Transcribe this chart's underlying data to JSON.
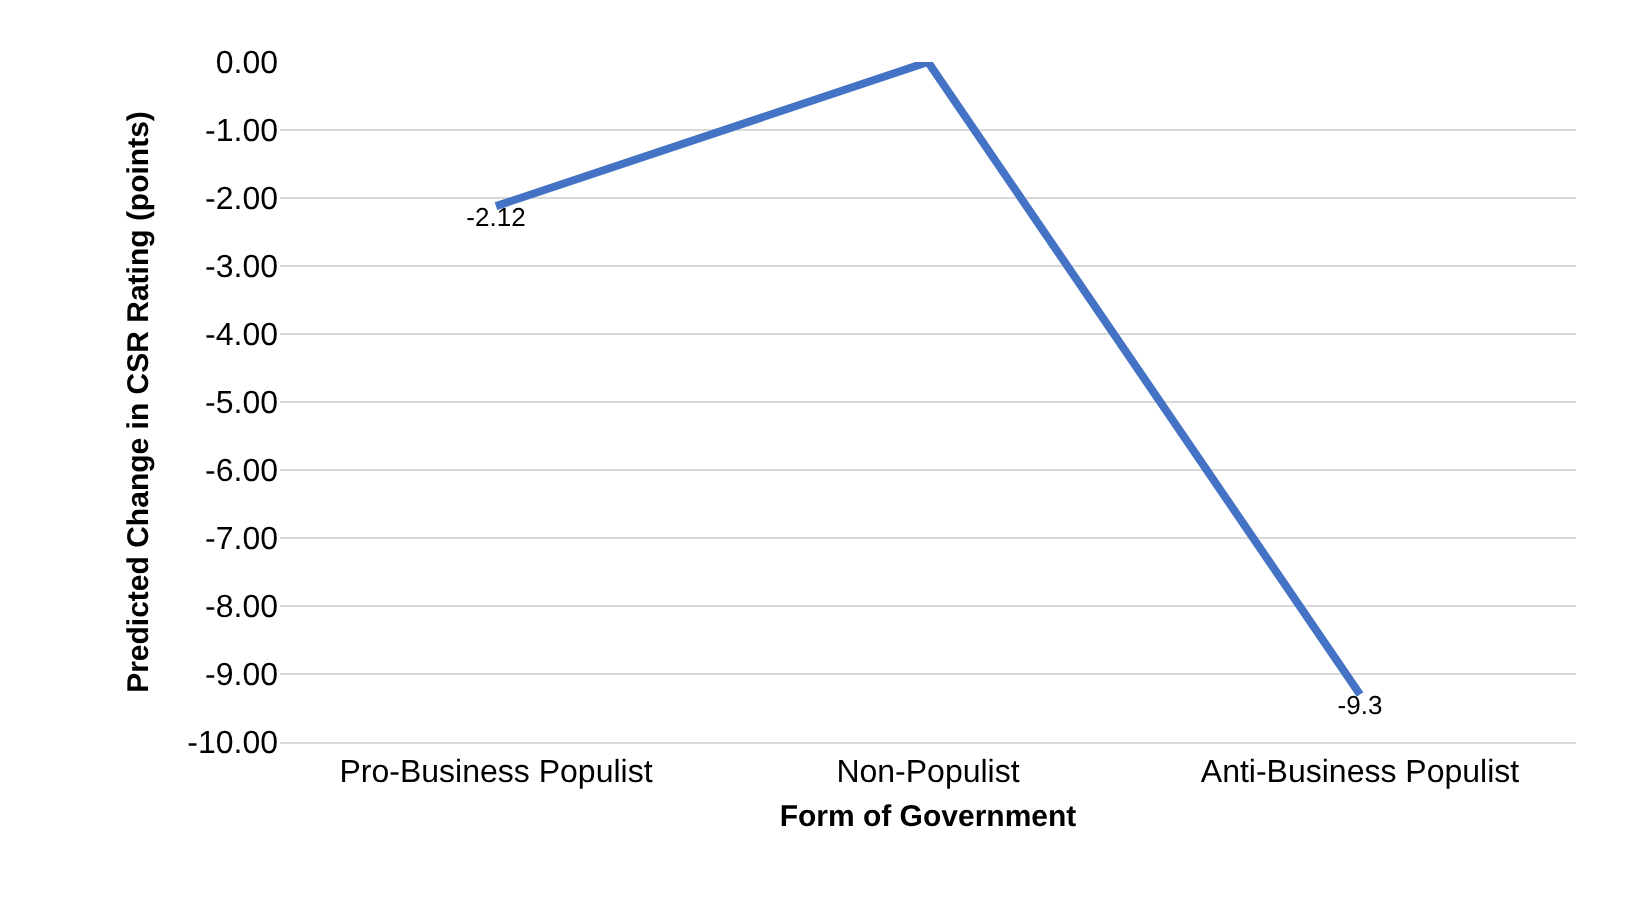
{
  "chart_data": {
    "type": "line",
    "xlabel": "Form of Government",
    "ylabel": "Predicted Change in CSR Rating (points)",
    "categories": [
      "Pro-Business Populist",
      "Non-Populist",
      "Anti-Business Populist"
    ],
    "series": [
      {
        "color": "#4472c4",
        "values": [
          -2.12,
          0,
          -9.3
        ],
        "value_labels": [
          "-2.12",
          null,
          "-9.3"
        ]
      }
    ],
    "ylim": [
      -10,
      0
    ],
    "yticks": [
      {
        "value": 0,
        "label": "0.00"
      },
      {
        "value": -1,
        "label": "-1.00"
      },
      {
        "value": -2,
        "label": "-2.00"
      },
      {
        "value": -3,
        "label": "-3.00"
      },
      {
        "value": -4,
        "label": "-4.00"
      },
      {
        "value": -5,
        "label": "-5.00"
      },
      {
        "value": -6,
        "label": "-6.00"
      },
      {
        "value": -7,
        "label": "-7.00"
      },
      {
        "value": -8,
        "label": "-8.00"
      },
      {
        "value": -9,
        "label": "-9.00"
      },
      {
        "value": -10,
        "label": "-10.00"
      }
    ],
    "grid": "y",
    "marker": "none",
    "line_style": "solid"
  }
}
